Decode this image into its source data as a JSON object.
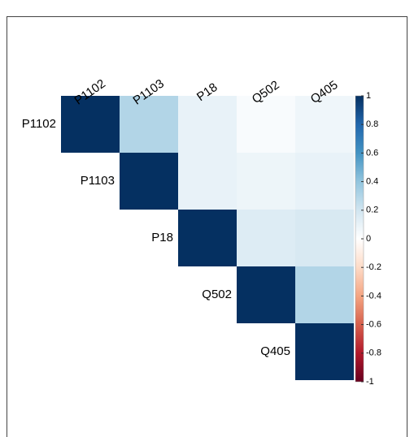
{
  "chart_data": {
    "type": "heatmap",
    "variables": [
      "P1102",
      "P1103",
      "P18",
      "Q502",
      "Q405"
    ],
    "matrix": [
      [
        1,
        0.3,
        0.1,
        0.03,
        0.07
      ],
      [
        null,
        1,
        0.1,
        0.08,
        0.1
      ],
      [
        null,
        null,
        1,
        0.15,
        0.17
      ],
      [
        null,
        null,
        null,
        1,
        0.3
      ],
      [
        null,
        null,
        null,
        null,
        1
      ]
    ],
    "colorscale": [
      "#67001F",
      "#B2182B",
      "#D6604D",
      "#F4A582",
      "#FDDBC7",
      "#FFFFFF",
      "#D1E5F0",
      "#92C5DE",
      "#4393C3",
      "#2166AC",
      "#053061"
    ],
    "clim": [
      -1,
      1
    ],
    "cticks": [
      -1,
      -0.8,
      -0.6,
      -0.4,
      -0.2,
      0,
      0.2,
      0.4,
      0.6,
      0.8,
      1
    ]
  }
}
